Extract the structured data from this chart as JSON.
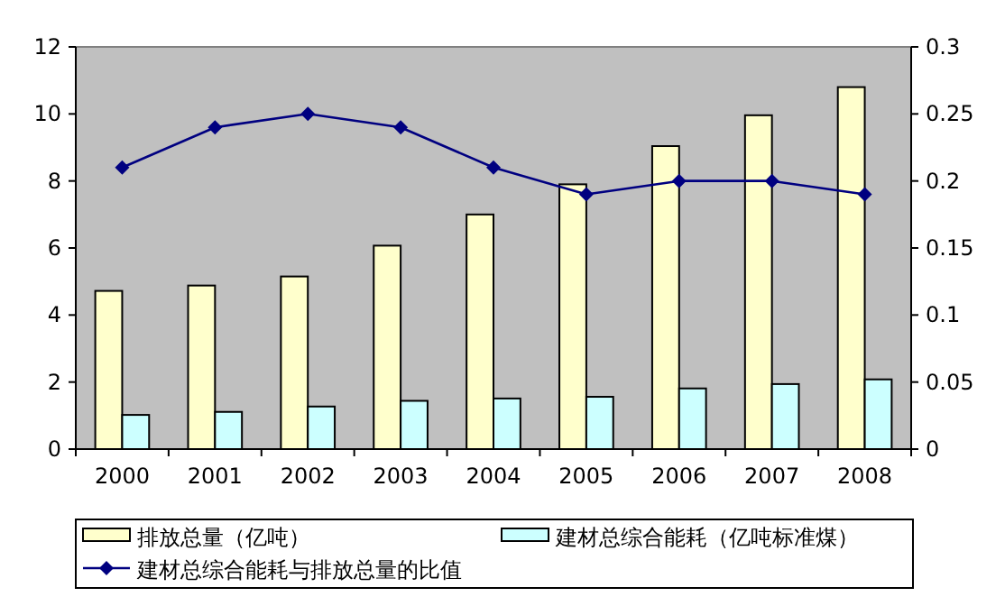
{
  "chart_data": {
    "type": "bar",
    "categories": [
      "2000",
      "2001",
      "2002",
      "2003",
      "2004",
      "2005",
      "2006",
      "2007",
      "2008"
    ],
    "series": [
      {
        "name": "排放总量（亿吨）",
        "color": "#ffffcc",
        "values": [
          4.72,
          4.88,
          5.15,
          6.07,
          7.0,
          7.9,
          9.04,
          9.96,
          10.8
        ]
      },
      {
        "name": "建材总综合能耗（亿吨标准煤）",
        "color": "#ccffff",
        "values": [
          1.02,
          1.11,
          1.27,
          1.44,
          1.51,
          1.56,
          1.81,
          1.94,
          2.08
        ]
      },
      {
        "name": "建材总综合能耗与排放总量的比值",
        "type": "line",
        "axis": "y2",
        "color": "#000080",
        "marker": "diamond",
        "values": [
          0.21,
          0.24,
          0.25,
          0.24,
          0.21,
          0.19,
          0.2,
          0.2,
          0.19
        ]
      }
    ],
    "ylim": [
      0,
      12
    ],
    "yticks": [
      0,
      2,
      4,
      6,
      8,
      10,
      12
    ],
    "y2lim": [
      0,
      0.3
    ],
    "y2ticks": [
      0,
      0.05,
      0.1,
      0.15,
      0.2,
      0.25,
      0.3
    ],
    "grid": false,
    "legend": "bottom"
  }
}
